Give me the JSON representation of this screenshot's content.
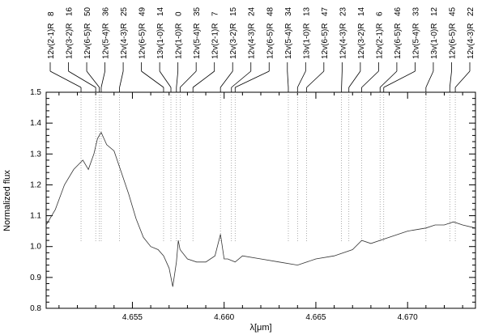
{
  "chart_data": {
    "type": "line",
    "title": "",
    "xlabel": "λ[μm]",
    "ylabel": "Normalized flux",
    "xlim": [
      4.6503,
      4.6737
    ],
    "ylim": [
      0.8,
      1.5
    ],
    "xticks": [
      4.655,
      4.66,
      4.665,
      4.67
    ],
    "xtick_labels": [
      "4.655",
      "4.660",
      "4.665",
      "4.670"
    ],
    "yticks": [
      0.8,
      0.9,
      1.0,
      1.1,
      1.2,
      1.3,
      1.4,
      1.5
    ],
    "ytick_labels": [
      "0.8",
      "0.9",
      "1.0",
      "1.1",
      "1.2",
      "1.3",
      "1.4",
      "1.5"
    ],
    "grid": false,
    "series": [
      {
        "name": "",
        "x": [
          4.6503,
          4.6508,
          4.6513,
          4.6518,
          4.6523,
          4.6526,
          4.6529,
          4.6531,
          4.6533,
          4.6536,
          4.654,
          4.6544,
          4.6548,
          4.6552,
          4.6556,
          4.656,
          4.6564,
          4.6567,
          4.657,
          4.6572,
          4.6574,
          4.6575,
          4.6576,
          4.658,
          4.6585,
          4.659,
          4.6595,
          4.6598,
          4.66,
          4.6602,
          4.6606,
          4.661,
          4.662,
          4.663,
          4.664,
          4.665,
          4.666,
          4.667,
          4.6675,
          4.668,
          4.669,
          4.67,
          4.671,
          4.6715,
          4.672,
          4.6725,
          4.673,
          4.6737
        ],
        "y": [
          1.07,
          1.12,
          1.2,
          1.25,
          1.28,
          1.25,
          1.3,
          1.35,
          1.37,
          1.33,
          1.31,
          1.24,
          1.17,
          1.09,
          1.03,
          1.0,
          0.99,
          0.97,
          0.93,
          0.87,
          0.95,
          1.02,
          0.99,
          0.96,
          0.95,
          0.95,
          0.97,
          1.04,
          0.96,
          0.96,
          0.95,
          0.97,
          0.96,
          0.95,
          0.94,
          0.96,
          0.97,
          0.99,
          1.02,
          1.01,
          1.03,
          1.05,
          1.06,
          1.07,
          1.07,
          1.08,
          1.07,
          1.06
        ]
      }
    ],
    "line_ids": [
      {
        "label": "12v(2-1)R",
        "num": "8",
        "x": 4.6522
      },
      {
        "label": "12v(3-2)R",
        "num": "16",
        "x": 4.653
      },
      {
        "label": "12v(6-5)R",
        "num": "50",
        "x": 4.6532
      },
      {
        "label": "12v(5-4)R",
        "num": "36",
        "x": 4.6533
      },
      {
        "label": "12v(4-3)R",
        "num": "25",
        "x": 4.6543
      },
      {
        "label": "12v(6-5)R",
        "num": "49",
        "x": 4.6567
      },
      {
        "label": "13v(1-0)R",
        "num": "14",
        "x": 4.6571
      },
      {
        "label": "12v(1-0)R",
        "num": "0",
        "x": 4.6574
      },
      {
        "label": "12v(5-4)R",
        "num": "35",
        "x": 4.6576
      },
      {
        "label": "12v(2-1)R",
        "num": "7",
        "x": 4.6583
      },
      {
        "label": "12v(3-2)R",
        "num": "15",
        "x": 4.6598
      },
      {
        "label": "12v(4-3)R",
        "num": "24",
        "x": 4.6604
      },
      {
        "label": "12v(6-5)R",
        "num": "48",
        "x": 4.6606
      },
      {
        "label": "12v(5-4)R",
        "num": "34",
        "x": 4.6635
      },
      {
        "label": "13v(1-0)R",
        "num": "13",
        "x": 4.664
      },
      {
        "label": "12v(6-5)R",
        "num": "47",
        "x": 4.6645
      },
      {
        "label": "12v(4-3)R",
        "num": "23",
        "x": 4.6664
      },
      {
        "label": "12v(3-2)R",
        "num": "14",
        "x": 4.6668
      },
      {
        "label": "12v(2-1)R",
        "num": "6",
        "x": 4.6675
      },
      {
        "label": "12v(6-5)R",
        "num": "46",
        "x": 4.6685
      },
      {
        "label": "12v(5-4)R",
        "num": "33",
        "x": 4.6687
      },
      {
        "label": "13v(1-0)R",
        "num": "12",
        "x": 4.671
      },
      {
        "label": "12v(6-5)R",
        "num": "45",
        "x": 4.6723
      },
      {
        "label": "12v(4-3)R",
        "num": "22",
        "x": 4.6726
      }
    ]
  }
}
